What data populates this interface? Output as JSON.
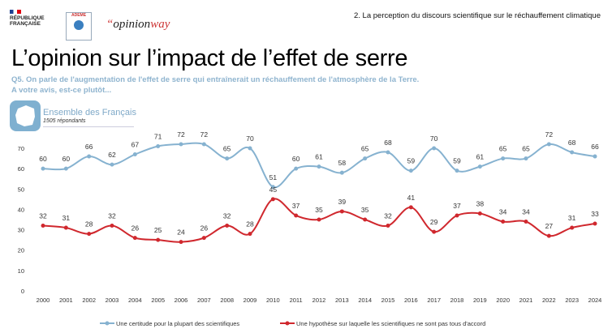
{
  "header": {
    "logos": [
      "RÉPUBLIQUE FRANÇAISE",
      "ADEME",
      "opinionway"
    ],
    "section": "2. La perception du discours scientifique sur le réchauffement climatique"
  },
  "title": "L’opinion sur l’impact de l’effet de serre",
  "question_line1": "Q5. On parle de l'augmentation de l'effet de serre qui entraînerait un réchauffement de l'atmosphère de la Terre.",
  "question_line2": "A votre avis, est-ce plutôt...",
  "sample": {
    "title": "Ensemble des Français",
    "n": "1505 répondants"
  },
  "chart_data": {
    "type": "line",
    "x": [
      2000,
      2001,
      2002,
      2003,
      2004,
      2005,
      2006,
      2007,
      2008,
      2009,
      2010,
      2011,
      2012,
      2013,
      2014,
      2015,
      2016,
      2017,
      2018,
      2019,
      2020,
      2021,
      2022,
      2023,
      2024
    ],
    "ylim": [
      0,
      70
    ],
    "yticks": [
      0,
      10,
      20,
      30,
      40,
      50,
      60,
      70
    ],
    "grid": false,
    "legend": "bottom",
    "series": [
      {
        "name": "Une certitude pour la plupart des scientifiques",
        "color": "#86b2d0",
        "values": [
          60,
          60,
          66,
          62,
          67,
          71,
          72,
          72,
          65,
          70,
          51,
          60,
          61,
          58,
          65,
          68,
          59,
          70,
          59,
          61,
          65,
          65,
          72,
          68,
          66
        ]
      },
      {
        "name": "Une hypothèse sur laquelle les scientifiques ne sont pas tous d'accord",
        "color": "#d0282e",
        "values": [
          32,
          31,
          28,
          32,
          26,
          25,
          24,
          26,
          32,
          28,
          45,
          37,
          35,
          39,
          35,
          32,
          41,
          29,
          37,
          38,
          34,
          34,
          27,
          31,
          33
        ]
      }
    ]
  }
}
